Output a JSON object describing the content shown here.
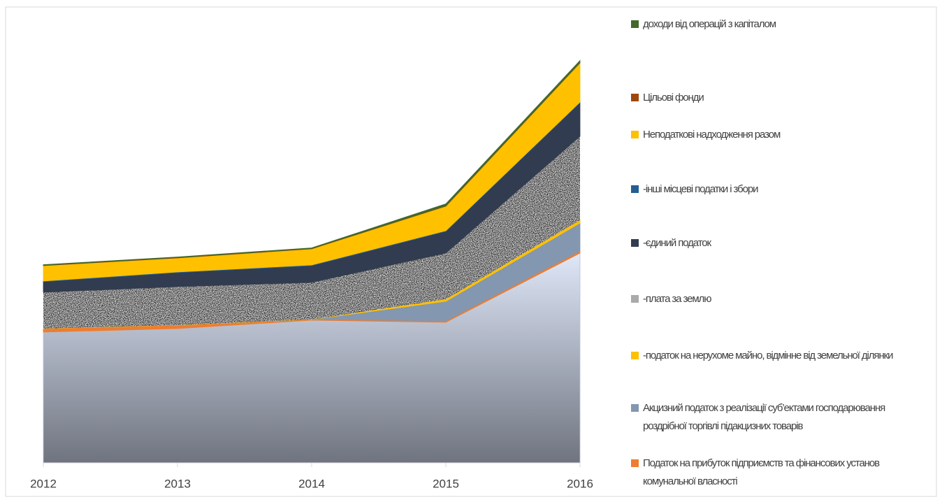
{
  "chart_data": {
    "type": "stacked_area",
    "categories": [
      "2012",
      "2013",
      "2014",
      "2015",
      "2016"
    ],
    "ylim": [
      0,
      600
    ],
    "series": [
      {
        "color": "#b8c3d8",
        "gradient": [
          "#dfe7f8",
          "#6f747f"
        ],
        "values": [
          187,
          192,
          204,
          201,
          300
        ]
      },
      {
        "name": "Податок на прибуток підприємств та фінансових установ комунальної власності",
        "color": "#ed7d31",
        "values": [
          5,
          5,
          1,
          2,
          3
        ]
      },
      {
        "name": "Акцизний податок з реалізації суб’ектами господарювання роздрібної торгівлі підакцизних товарів",
        "color": "#8497b0",
        "values": [
          0,
          0,
          0,
          28,
          40
        ]
      },
      {
        "name": "-податок на нерухоме майно, відмінне від земельної ділянки",
        "color": "#ffc000",
        "values": [
          0,
          0,
          0,
          3,
          4
        ]
      },
      {
        "name": "-плата за землю",
        "color": "#9a9a9a",
        "texture": true,
        "values": [
          52,
          55,
          53,
          66,
          120
        ]
      },
      {
        "name": "-єдиний податок",
        "color": "#323c50",
        "values": [
          15,
          20,
          24,
          31,
          48
        ]
      },
      {
        "name": "-інші місцеві податки і збори",
        "color": "#255e91",
        "values": [
          1,
          1,
          1,
          1,
          1
        ]
      },
      {
        "name": "Неподаткові надходження разом",
        "color": "#ffc000",
        "values": [
          22,
          20,
          23,
          35,
          56
        ]
      },
      {
        "name": "Цільові фонди",
        "color": "#9e480e",
        "values": [
          0.5,
          0.5,
          0.5,
          0.5,
          0.5
        ]
      },
      {
        "name": "доходи від операцій з капіталом",
        "color": "#43682b",
        "values": [
          1,
          1,
          1,
          3,
          3
        ]
      }
    ]
  }
}
